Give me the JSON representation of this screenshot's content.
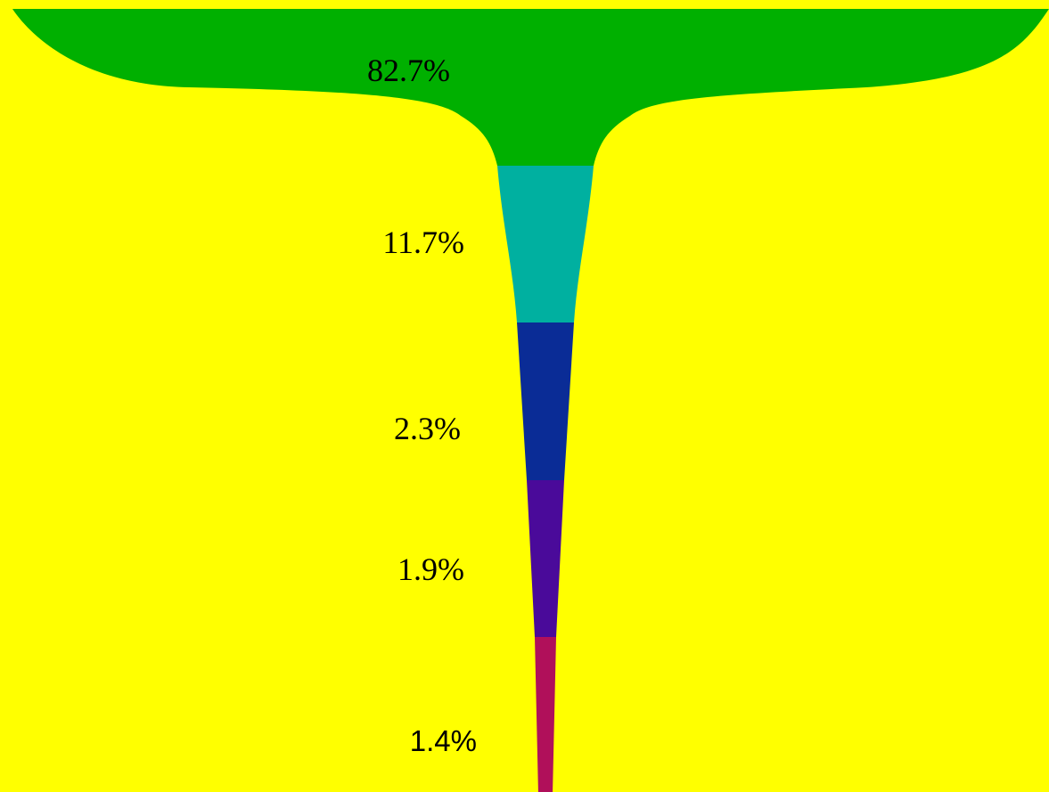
{
  "chart_data": {
    "type": "funnel",
    "values": [
      82.7,
      11.7,
      2.3,
      1.9,
      1.4
    ],
    "labels": [
      "82.7%",
      "11.7%",
      "2.3%",
      "1.9%",
      "1.4%"
    ],
    "colors": [
      "#00b000",
      "#00b0a0",
      "#0a2c96",
      "#4a0a9a",
      "#b0105a"
    ],
    "background": "#ffff00",
    "legend": "none",
    "grid": false
  }
}
